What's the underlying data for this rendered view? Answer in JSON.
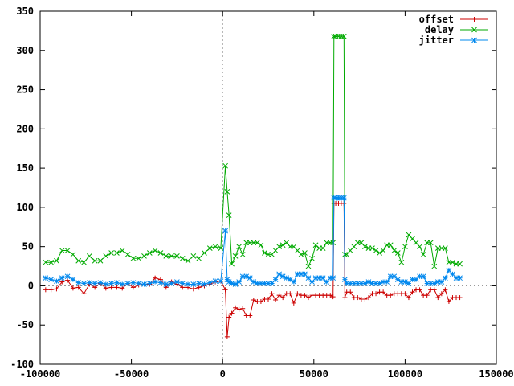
{
  "chart_data": {
    "type": "line",
    "title": "",
    "xlabel": "",
    "ylabel": "",
    "xlim": [
      -100000,
      150000
    ],
    "ylim": [
      -100,
      350
    ],
    "x_ticks": [
      -100000,
      -50000,
      0,
      50000,
      100000,
      150000
    ],
    "y_ticks": [
      -100,
      -50,
      0,
      50,
      100,
      150,
      200,
      250,
      300,
      350
    ],
    "x_tick_labels": [
      "-100000",
      "-50000",
      "0",
      "50000",
      "100000",
      "150000"
    ],
    "y_tick_labels": [
      "-100",
      "-50",
      "0",
      "50",
      "100",
      "150",
      "200",
      "250",
      "300",
      "350"
    ],
    "zero_axes": true,
    "grid": false,
    "legend_position": "top-right",
    "series": [
      {
        "name": "offset",
        "color": "#cc0000",
        "marker": "plus",
        "x": [
          -97000,
          -94000,
          -91000,
          -88000,
          -85000,
          -82000,
          -79000,
          -76000,
          -73000,
          -70000,
          -67000,
          -64000,
          -61000,
          -58000,
          -55000,
          -52000,
          -49000,
          -46000,
          -43000,
          -40000,
          -37000,
          -34000,
          -31000,
          -28000,
          -25000,
          -22000,
          -19000,
          -16000,
          -13000,
          -10000,
          -7000,
          -4000,
          -1000,
          1500,
          2500,
          3500,
          5000,
          7000,
          9000,
          11000,
          13000,
          15000,
          17000,
          19000,
          21000,
          23000,
          25000,
          27000,
          29000,
          31000,
          33000,
          35000,
          37000,
          39000,
          41000,
          43000,
          45000,
          47000,
          49000,
          51000,
          53000,
          55000,
          57000,
          59000,
          60500,
          61000,
          62000,
          63500,
          65000,
          66500,
          67000,
          68000,
          70000,
          72000,
          74000,
          76000,
          78000,
          80000,
          82000,
          84000,
          86000,
          88000,
          90000,
          92000,
          94000,
          96000,
          98000,
          100000,
          102000,
          104000,
          106000,
          108000,
          110000,
          112000,
          114000,
          116000,
          118000,
          120000,
          122000,
          124000,
          126000,
          128000,
          130000
        ],
        "y": [
          -5,
          -5,
          -4,
          5,
          7,
          -3,
          -2,
          -10,
          2,
          -2,
          3,
          -3,
          -2,
          -2,
          -3,
          3,
          -2,
          1,
          2,
          2,
          10,
          8,
          -2,
          5,
          2,
          -2,
          -2,
          -4,
          -2,
          0,
          2,
          5,
          6,
          -5,
          -65,
          -40,
          -35,
          -28,
          -30,
          -29,
          -38,
          -38,
          -18,
          -20,
          -20,
          -17,
          -17,
          -10,
          -18,
          -12,
          -15,
          -10,
          -10,
          -22,
          -10,
          -12,
          -12,
          -15,
          -12,
          -12,
          -12,
          -12,
          -12,
          -12,
          -14,
          105,
          105,
          105,
          105,
          105,
          -15,
          -8,
          -8,
          -15,
          -15,
          -17,
          -17,
          -15,
          -10,
          -10,
          -8,
          -8,
          -12,
          -12,
          -10,
          -10,
          -10,
          -10,
          -15,
          -8,
          -5,
          -5,
          -12,
          -12,
          -5,
          -5,
          -15,
          -10,
          -5,
          -20,
          -15,
          -15,
          -15
        ]
      },
      {
        "name": "delay",
        "color": "#00aa00",
        "marker": "cross",
        "x": [
          -97000,
          -94000,
          -91000,
          -88000,
          -85000,
          -82000,
          -79000,
          -76000,
          -73000,
          -70000,
          -67000,
          -64000,
          -61000,
          -58000,
          -55000,
          -52000,
          -49000,
          -46000,
          -43000,
          -40000,
          -37000,
          -34000,
          -31000,
          -28000,
          -25000,
          -22000,
          -19000,
          -16000,
          -13000,
          -10000,
          -7000,
          -4000,
          -1000,
          1500,
          2500,
          3500,
          5000,
          7000,
          9000,
          11000,
          13000,
          15000,
          17000,
          19000,
          21000,
          23000,
          25000,
          27000,
          29000,
          31000,
          33000,
          35000,
          37000,
          39000,
          41000,
          43000,
          45000,
          47000,
          49000,
          51000,
          53000,
          55000,
          57000,
          59000,
          60500,
          61000,
          62000,
          63500,
          65000,
          66500,
          67000,
          68000,
          70000,
          72000,
          74000,
          76000,
          78000,
          80000,
          82000,
          84000,
          86000,
          88000,
          90000,
          92000,
          94000,
          96000,
          98000,
          100000,
          102000,
          104000,
          106000,
          108000,
          110000,
          112000,
          114000,
          116000,
          118000,
          120000,
          122000,
          124000,
          126000,
          128000,
          130000
        ],
        "y": [
          30,
          30,
          32,
          45,
          45,
          40,
          32,
          30,
          38,
          32,
          32,
          38,
          42,
          42,
          45,
          40,
          35,
          35,
          38,
          42,
          45,
          42,
          38,
          38,
          38,
          35,
          32,
          38,
          35,
          42,
          48,
          50,
          48,
          153,
          120,
          90,
          28,
          38,
          50,
          40,
          55,
          55,
          55,
          55,
          52,
          42,
          40,
          40,
          45,
          50,
          52,
          55,
          50,
          50,
          45,
          40,
          42,
          25,
          35,
          52,
          48,
          48,
          55,
          55,
          55,
          318,
          318,
          318,
          318,
          318,
          40,
          40,
          45,
          50,
          55,
          55,
          50,
          48,
          48,
          45,
          42,
          45,
          52,
          52,
          45,
          42,
          30,
          50,
          65,
          60,
          55,
          50,
          40,
          55,
          55,
          25,
          48,
          48,
          48,
          30,
          30,
          28,
          28
        ]
      },
      {
        "name": "jitter",
        "color": "#0088ee",
        "marker": "star",
        "x": [
          -97000,
          -94000,
          -91000,
          -88000,
          -85000,
          -82000,
          -79000,
          -76000,
          -73000,
          -70000,
          -67000,
          -64000,
          -61000,
          -58000,
          -55000,
          -52000,
          -49000,
          -46000,
          -43000,
          -40000,
          -37000,
          -34000,
          -31000,
          -28000,
          -25000,
          -22000,
          -19000,
          -16000,
          -13000,
          -10000,
          -7000,
          -4000,
          -1000,
          1500,
          2500,
          3500,
          5000,
          7000,
          9000,
          11000,
          13000,
          15000,
          17000,
          19000,
          21000,
          23000,
          25000,
          27000,
          29000,
          31000,
          33000,
          35000,
          37000,
          39000,
          41000,
          43000,
          45000,
          47000,
          49000,
          51000,
          53000,
          55000,
          57000,
          59000,
          60500,
          61000,
          62000,
          63500,
          65000,
          66500,
          67000,
          68000,
          70000,
          72000,
          74000,
          76000,
          78000,
          80000,
          82000,
          84000,
          86000,
          88000,
          90000,
          92000,
          94000,
          96000,
          98000,
          100000,
          102000,
          104000,
          106000,
          108000,
          110000,
          112000,
          114000,
          116000,
          118000,
          120000,
          122000,
          124000,
          126000,
          128000,
          130000
        ],
        "y": [
          10,
          8,
          6,
          10,
          12,
          8,
          4,
          3,
          4,
          3,
          4,
          2,
          3,
          4,
          2,
          3,
          4,
          3,
          2,
          3,
          5,
          4,
          2,
          3,
          5,
          3,
          2,
          2,
          3,
          2,
          4,
          6,
          6,
          70,
          8,
          5,
          3,
          2,
          5,
          12,
          12,
          10,
          5,
          3,
          3,
          3,
          3,
          3,
          8,
          15,
          12,
          10,
          8,
          5,
          15,
          15,
          15,
          10,
          5,
          10,
          10,
          10,
          5,
          10,
          10,
          112,
          112,
          112,
          112,
          112,
          8,
          3,
          3,
          3,
          3,
          3,
          3,
          5,
          3,
          3,
          3,
          5,
          5,
          12,
          12,
          8,
          5,
          5,
          3,
          8,
          8,
          12,
          12,
          3,
          3,
          3,
          5,
          5,
          10,
          20,
          15,
          10,
          10
        ]
      }
    ]
  }
}
